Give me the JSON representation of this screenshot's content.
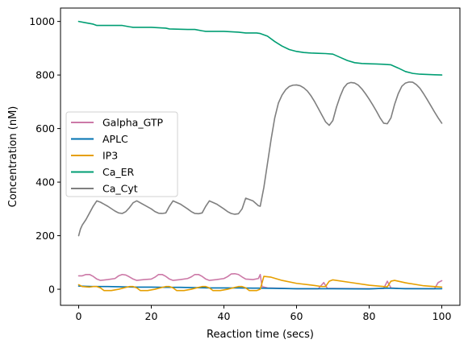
{
  "chart_data": {
    "type": "line",
    "xlabel": "Reaction time (secs)",
    "ylabel": "Concentration (nM)",
    "xlim": [
      -5,
      105
    ],
    "ylim": [
      -60,
      1050
    ],
    "xticks": [
      0,
      20,
      40,
      60,
      80,
      100
    ],
    "yticks": [
      0,
      200,
      400,
      600,
      800,
      1000
    ],
    "grid": false,
    "legend_position": "center-left",
    "series": [
      {
        "name": "Galpha_GTP",
        "color": "#cc79a7",
        "x": [
          0,
          1,
          2,
          3,
          4,
          5,
          6,
          8,
          10,
          11,
          12,
          13,
          14,
          15,
          16,
          18,
          20,
          21,
          22,
          23,
          24,
          25,
          26,
          28,
          30,
          31,
          32,
          33,
          34,
          35,
          36,
          38,
          40,
          41,
          42,
          43,
          44,
          45,
          46,
          48,
          49.5,
          50,
          50.5,
          52,
          60,
          66,
          67.5,
          68.5,
          70,
          80,
          84,
          85,
          86,
          88,
          98,
          99,
          100
        ],
        "y": [
          50,
          50,
          55,
          55,
          48,
          38,
          33,
          36,
          40,
          50,
          55,
          53,
          46,
          38,
          33,
          36,
          38,
          45,
          55,
          55,
          48,
          38,
          33,
          36,
          40,
          46,
          55,
          55,
          48,
          38,
          33,
          36,
          40,
          47,
          57,
          58,
          55,
          46,
          38,
          36,
          40,
          55,
          10,
          5,
          2,
          2,
          25,
          3,
          3,
          2,
          3,
          30,
          5,
          3,
          2,
          25,
          32
        ]
      },
      {
        "name": "APLC",
        "color": "#0072b2",
        "x": [
          0,
          2,
          4,
          5,
          8,
          12,
          16,
          20,
          24,
          28,
          32,
          36,
          40,
          44,
          48,
          50,
          55,
          60,
          70,
          80,
          85,
          90,
          100
        ],
        "y": [
          12,
          11,
          10,
          10,
          10,
          9,
          8,
          8,
          7,
          7,
          6,
          5,
          5,
          5,
          4,
          4,
          3,
          2,
          2,
          1,
          4,
          2,
          2
        ]
      },
      {
        "name": "IP3",
        "color": "#e69f00",
        "x": [
          0,
          1,
          3,
          4,
          5,
          6,
          7,
          9,
          11,
          13,
          14,
          15,
          16,
          17,
          19,
          21,
          23,
          24,
          25,
          26,
          27,
          29,
          31,
          33,
          34,
          35,
          36,
          37,
          39,
          41,
          43,
          44,
          45,
          46,
          47,
          49,
          50,
          51,
          53,
          56,
          60,
          65,
          67,
          68,
          69,
          70,
          75,
          80,
          84,
          85,
          86,
          87,
          90,
          95,
          100
        ],
        "y": [
          17,
          10,
          8,
          10,
          10,
          5,
          -5,
          -5,
          0,
          7,
          10,
          10,
          5,
          -5,
          -5,
          0,
          7,
          10,
          10,
          5,
          -5,
          -5,
          0,
          7,
          10,
          10,
          5,
          -5,
          -5,
          0,
          7,
          10,
          10,
          5,
          -5,
          -5,
          0,
          48,
          45,
          33,
          22,
          14,
          10,
          10,
          30,
          35,
          25,
          15,
          10,
          9,
          30,
          33,
          24,
          13,
          8
        ]
      },
      {
        "name": "Ca_ER",
        "color": "#009e73",
        "x": [
          0,
          2,
          4,
          5,
          8,
          12,
          14,
          15,
          20,
          24,
          25,
          30,
          32,
          34,
          35,
          40,
          44,
          46,
          49,
          50,
          52,
          54,
          56,
          58,
          60,
          62,
          64,
          66,
          68,
          70,
          72,
          74,
          76,
          78,
          80,
          82,
          84,
          86,
          88,
          90,
          92,
          94,
          96,
          98,
          100
        ],
        "y": [
          1000,
          995,
          990,
          985,
          985,
          985,
          980,
          978,
          978,
          975,
          972,
          970,
          970,
          965,
          963,
          963,
          960,
          957,
          957,
          955,
          945,
          925,
          908,
          895,
          888,
          884,
          882,
          881,
          880,
          878,
          866,
          854,
          846,
          843,
          842,
          841,
          840,
          838,
          826,
          813,
          806,
          803,
          802,
          801,
          800
        ]
      },
      {
        "name": "Ca_Cyt",
        "color": "#7f7f7f",
        "x": [
          0,
          0.5,
          1,
          2,
          3,
          4,
          5,
          6,
          8,
          10,
          11,
          12,
          13,
          14,
          15,
          16,
          18,
          20,
          21,
          22,
          23,
          24,
          25,
          26,
          28,
          30,
          31,
          32,
          33,
          34,
          35,
          36,
          38,
          40,
          41,
          42,
          43,
          44,
          45,
          46,
          48,
          49.5,
          50,
          51,
          52,
          53,
          54,
          55,
          56,
          57,
          58,
          59,
          60,
          61,
          62,
          63,
          64,
          65,
          66,
          67,
          68,
          69,
          70,
          71,
          72,
          73,
          74,
          75,
          76,
          77,
          78,
          79,
          80,
          81,
          82,
          83,
          84,
          85,
          86,
          87,
          88,
          89,
          90,
          91,
          92,
          93,
          94,
          95,
          96,
          97,
          98,
          99,
          100
        ],
        "y": [
          200,
          225,
          240,
          260,
          285,
          310,
          330,
          325,
          310,
          292,
          285,
          283,
          290,
          305,
          323,
          330,
          315,
          300,
          290,
          284,
          283,
          285,
          310,
          330,
          318,
          300,
          290,
          283,
          282,
          285,
          310,
          330,
          318,
          300,
          290,
          283,
          280,
          282,
          300,
          340,
          330,
          312,
          310,
          380,
          470,
          560,
          640,
          695,
          725,
          745,
          757,
          762,
          763,
          760,
          752,
          740,
          722,
          700,
          675,
          650,
          625,
          612,
          630,
          680,
          720,
          752,
          768,
          772,
          770,
          762,
          748,
          730,
          710,
          688,
          665,
          640,
          620,
          618,
          640,
          690,
          730,
          758,
          770,
          774,
          773,
          764,
          750,
          730,
          708,
          685,
          662,
          640,
          620
        ]
      }
    ]
  }
}
